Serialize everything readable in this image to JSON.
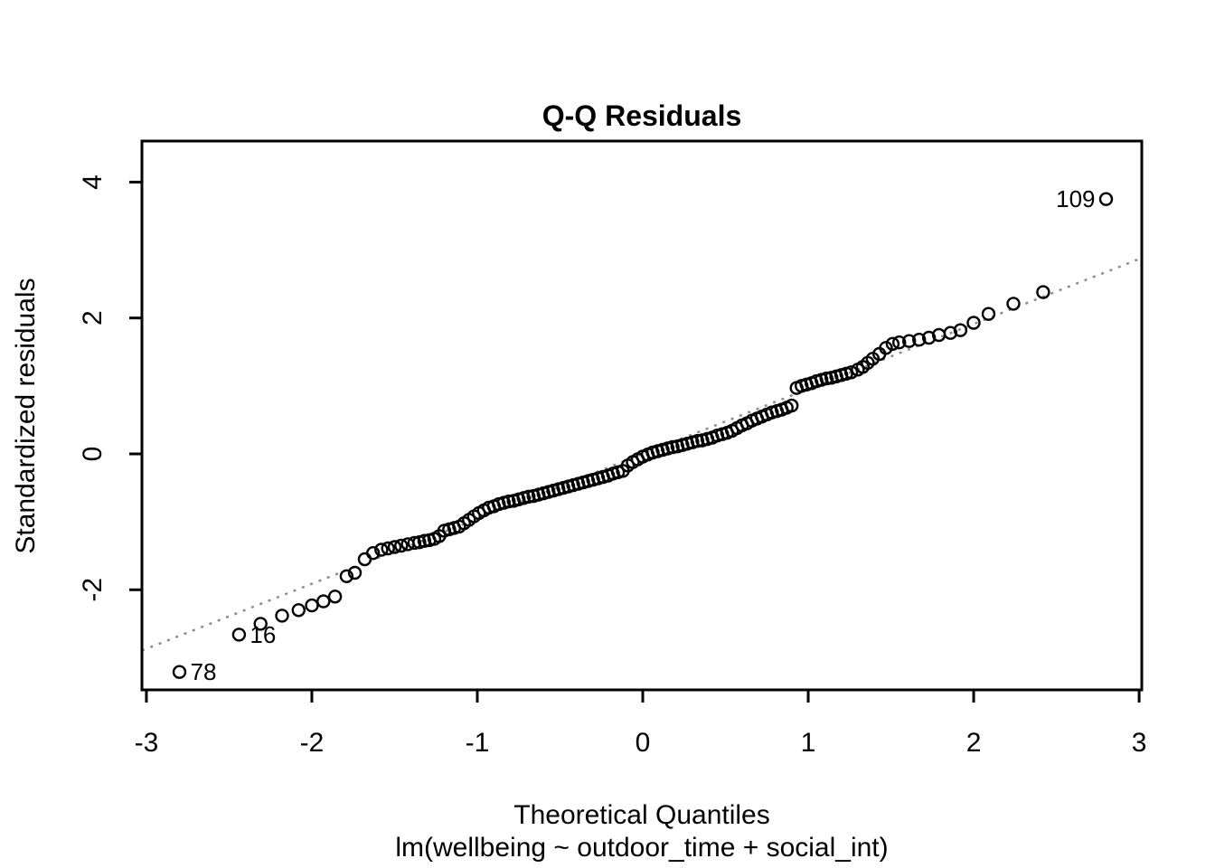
{
  "title": "Q-Q Residuals",
  "x_axis_title": "Theoretical Quantiles",
  "y_axis_title": "Standardized residuals",
  "model_subtitle": "lm(wellbeing ~ outdoor_time + social_int)",
  "colors": {
    "foreground": "#000000",
    "background": "#ffffff",
    "reference_line": "#8c8c8c"
  },
  "chart_data": {
    "type": "scatter",
    "title": "Q-Q Residuals",
    "xlabel": "Theoretical Quantiles",
    "ylabel": "Standardized residuals",
    "subtitle": "lm(wellbeing ~ outdoor_time + social_int)",
    "grid": false,
    "legend": null,
    "xlim": [
      -3.027,
      3.016
    ],
    "ylim": [
      -3.473,
      4.604
    ],
    "x_ticks": [
      -3,
      -2,
      -1,
      0,
      1,
      2,
      3
    ],
    "y_ticks": [
      -2,
      0,
      2,
      4
    ],
    "marker": {
      "shape": "open-circle",
      "color": "#000000",
      "radius_px": 6.5,
      "stroke_px": 2.4
    },
    "reference_line": {
      "slope": 0.956,
      "intercept": 0,
      "style": "dotted",
      "color": "#8c8c8c"
    },
    "labeled_points": [
      {
        "label": "78",
        "x": -2.8,
        "y": -3.21,
        "side": "right"
      },
      {
        "label": "16",
        "x": -2.44,
        "y": -2.66,
        "side": "right"
      },
      {
        "label": "109",
        "x": 2.8,
        "y": 3.75,
        "side": "left"
      }
    ],
    "points": [
      [
        -2.8,
        -3.21
      ],
      [
        -2.44,
        -2.66
      ],
      [
        -2.31,
        -2.5
      ],
      [
        -2.18,
        -2.38
      ],
      [
        -2.08,
        -2.3
      ],
      [
        -2.0,
        -2.23
      ],
      [
        -1.93,
        -2.17
      ],
      [
        -1.86,
        -2.1
      ],
      [
        -1.79,
        -1.8
      ],
      [
        -1.74,
        -1.75
      ],
      [
        -1.68,
        -1.55
      ],
      [
        -1.63,
        -1.46
      ],
      [
        -1.58,
        -1.41
      ],
      [
        -1.54,
        -1.39
      ],
      [
        -1.5,
        -1.37
      ],
      [
        -1.46,
        -1.35
      ],
      [
        -1.42,
        -1.33
      ],
      [
        -1.38,
        -1.31
      ],
      [
        -1.35,
        -1.3
      ],
      [
        -1.32,
        -1.28
      ],
      [
        -1.29,
        -1.27
      ],
      [
        -1.26,
        -1.25
      ],
      [
        -1.23,
        -1.21
      ],
      [
        -1.2,
        -1.13
      ],
      [
        -1.17,
        -1.11
      ],
      [
        -1.14,
        -1.09
      ],
      [
        -1.11,
        -1.07
      ],
      [
        -1.08,
        -1.02
      ],
      [
        -1.05,
        -0.97
      ],
      [
        -1.02,
        -0.92
      ],
      [
        -0.99,
        -0.87
      ],
      [
        -0.96,
        -0.83
      ],
      [
        -0.93,
        -0.79
      ],
      [
        -0.9,
        -0.77
      ],
      [
        -0.87,
        -0.74
      ],
      [
        -0.84,
        -0.72
      ],
      [
        -0.81,
        -0.7
      ],
      [
        -0.78,
        -0.69
      ],
      [
        -0.75,
        -0.67
      ],
      [
        -0.72,
        -0.65
      ],
      [
        -0.69,
        -0.63
      ],
      [
        -0.66,
        -0.62
      ],
      [
        -0.63,
        -0.6
      ],
      [
        -0.6,
        -0.58
      ],
      [
        -0.57,
        -0.56
      ],
      [
        -0.54,
        -0.54
      ],
      [
        -0.51,
        -0.52
      ],
      [
        -0.48,
        -0.5
      ],
      [
        -0.45,
        -0.48
      ],
      [
        -0.42,
        -0.46
      ],
      [
        -0.39,
        -0.44
      ],
      [
        -0.36,
        -0.42
      ],
      [
        -0.33,
        -0.4
      ],
      [
        -0.3,
        -0.38
      ],
      [
        -0.27,
        -0.36
      ],
      [
        -0.24,
        -0.34
      ],
      [
        -0.21,
        -0.32
      ],
      [
        -0.18,
        -0.29
      ],
      [
        -0.15,
        -0.27
      ],
      [
        -0.12,
        -0.25
      ],
      [
        -0.09,
        -0.17
      ],
      [
        -0.06,
        -0.12
      ],
      [
        -0.03,
        -0.08
      ],
      [
        0.0,
        -0.04
      ],
      [
        0.03,
        -0.01
      ],
      [
        0.06,
        0.02
      ],
      [
        0.09,
        0.04
      ],
      [
        0.12,
        0.06
      ],
      [
        0.15,
        0.08
      ],
      [
        0.18,
        0.1
      ],
      [
        0.21,
        0.11
      ],
      [
        0.24,
        0.13
      ],
      [
        0.27,
        0.15
      ],
      [
        0.3,
        0.17
      ],
      [
        0.33,
        0.19
      ],
      [
        0.36,
        0.2
      ],
      [
        0.39,
        0.22
      ],
      [
        0.42,
        0.24
      ],
      [
        0.45,
        0.27
      ],
      [
        0.48,
        0.29
      ],
      [
        0.51,
        0.31
      ],
      [
        0.54,
        0.34
      ],
      [
        0.57,
        0.38
      ],
      [
        0.6,
        0.42
      ],
      [
        0.63,
        0.45
      ],
      [
        0.66,
        0.49
      ],
      [
        0.69,
        0.52
      ],
      [
        0.72,
        0.55
      ],
      [
        0.75,
        0.58
      ],
      [
        0.78,
        0.61
      ],
      [
        0.81,
        0.63
      ],
      [
        0.84,
        0.65
      ],
      [
        0.87,
        0.68
      ],
      [
        0.9,
        0.71
      ],
      [
        0.93,
        0.97
      ],
      [
        0.96,
        1.0
      ],
      [
        0.99,
        1.02
      ],
      [
        1.02,
        1.04
      ],
      [
        1.05,
        1.07
      ],
      [
        1.08,
        1.09
      ],
      [
        1.11,
        1.11
      ],
      [
        1.14,
        1.12
      ],
      [
        1.17,
        1.14
      ],
      [
        1.2,
        1.16
      ],
      [
        1.23,
        1.18
      ],
      [
        1.26,
        1.2
      ],
      [
        1.3,
        1.24
      ],
      [
        1.33,
        1.28
      ],
      [
        1.36,
        1.34
      ],
      [
        1.39,
        1.4
      ],
      [
        1.43,
        1.47
      ],
      [
        1.47,
        1.56
      ],
      [
        1.51,
        1.62
      ],
      [
        1.55,
        1.64
      ],
      [
        1.61,
        1.66
      ],
      [
        1.67,
        1.68
      ],
      [
        1.73,
        1.71
      ],
      [
        1.79,
        1.75
      ],
      [
        1.86,
        1.78
      ],
      [
        1.92,
        1.82
      ],
      [
        2.0,
        1.93
      ],
      [
        2.09,
        2.06
      ],
      [
        2.24,
        2.21
      ],
      [
        2.42,
        2.38
      ],
      [
        2.8,
        3.75
      ]
    ]
  }
}
